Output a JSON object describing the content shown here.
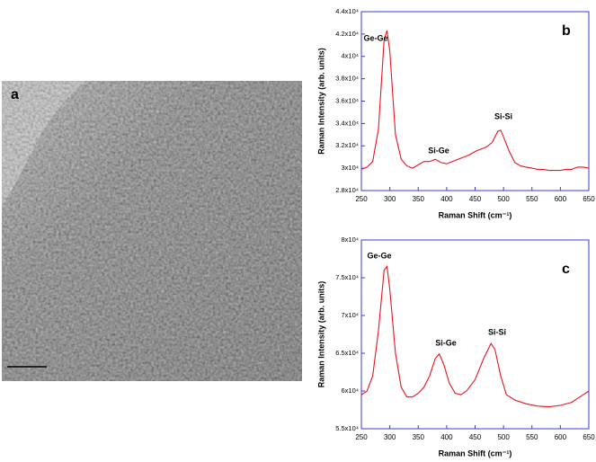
{
  "panel_a": {
    "label": "a"
  },
  "chart_data": [
    {
      "type": "line",
      "panel_label": "b",
      "x_label": "Raman Shift (cm⁻¹)",
      "y_label": "Raman Intensity (arb. units)",
      "annotations": [
        "Ge-Ge",
        "Si-Ge",
        "Si-Si"
      ],
      "color": "#e8141e",
      "frame_color": "#3a3ad0",
      "xlim": [
        250,
        650
      ],
      "xticks": [
        250,
        300,
        350,
        400,
        450,
        500,
        550,
        600,
        650
      ],
      "ylim": [
        28000,
        44000
      ],
      "yticks": [
        {
          "value": 28000,
          "label": "2.8x10⁴"
        },
        {
          "value": 30000,
          "label": "3x10⁴"
        },
        {
          "value": 32000,
          "label": "3.2x10⁴"
        },
        {
          "value": 34000,
          "label": "3.4x10⁴"
        },
        {
          "value": 36000,
          "label": "3.6x10⁴"
        },
        {
          "value": 38000,
          "label": "3.8x10⁴"
        },
        {
          "value": 40000,
          "label": "4x10⁴"
        },
        {
          "value": 42000,
          "label": "4.2x10⁴"
        },
        {
          "value": 44000,
          "label": "4.4x10⁴"
        }
      ],
      "x": [
        250,
        260,
        270,
        280,
        290,
        295,
        300,
        310,
        320,
        330,
        340,
        350,
        360,
        370,
        380,
        390,
        400,
        410,
        420,
        430,
        440,
        450,
        460,
        470,
        480,
        490,
        495,
        500,
        510,
        520,
        530,
        540,
        550,
        560,
        570,
        580,
        590,
        600,
        610,
        620,
        630,
        640,
        650
      ],
      "values": [
        29900,
        30100,
        30600,
        33500,
        41500,
        42300,
        40500,
        33000,
        30800,
        30200,
        30000,
        30300,
        30600,
        30600,
        30800,
        30500,
        30400,
        30600,
        30800,
        31000,
        31200,
        31500,
        31700,
        31900,
        32300,
        33300,
        33400,
        32800,
        31500,
        30500,
        30200,
        30100,
        30000,
        29900,
        29900,
        29800,
        29800,
        29800,
        29900,
        29900,
        30100,
        30100,
        30000
      ]
    },
    {
      "type": "line",
      "panel_label": "c",
      "x_label": "Raman Shift (cm⁻¹)",
      "y_label": "Raman Intensity (arb. units)",
      "annotations": [
        "Ge-Ge",
        "Si-Ge",
        "Si-Si"
      ],
      "color": "#e8141e",
      "frame_color": "#3a3ad0",
      "xlim": [
        250,
        650
      ],
      "xticks": [
        250,
        300,
        350,
        400,
        450,
        500,
        550,
        600,
        650
      ],
      "ylim": [
        55000,
        80000
      ],
      "yticks": [
        {
          "value": 55000,
          "label": "5.5x10⁴"
        },
        {
          "value": 60000,
          "label": "6x10⁴"
        },
        {
          "value": 65000,
          "label": "6.5x10⁴"
        },
        {
          "value": 70000,
          "label": "7x10⁴"
        },
        {
          "value": 75000,
          "label": "7.5x10⁴"
        },
        {
          "value": 80000,
          "label": "8x10⁴"
        }
      ],
      "x": [
        250,
        260,
        270,
        280,
        290,
        295,
        300,
        310,
        320,
        330,
        340,
        350,
        360,
        370,
        380,
        387,
        395,
        405,
        415,
        425,
        435,
        450,
        465,
        478,
        485,
        495,
        505,
        520,
        540,
        560,
        580,
        600,
        620,
        640,
        650
      ],
      "values": [
        59500,
        60000,
        62000,
        68000,
        76000,
        76500,
        73500,
        65000,
        60500,
        59200,
        59200,
        59700,
        60500,
        62000,
        64300,
        64900,
        63500,
        61000,
        59700,
        59500,
        60000,
        61500,
        64300,
        66300,
        65500,
        62000,
        59500,
        58800,
        58300,
        58000,
        57900,
        58100,
        58500,
        59500,
        60000
      ]
    }
  ]
}
